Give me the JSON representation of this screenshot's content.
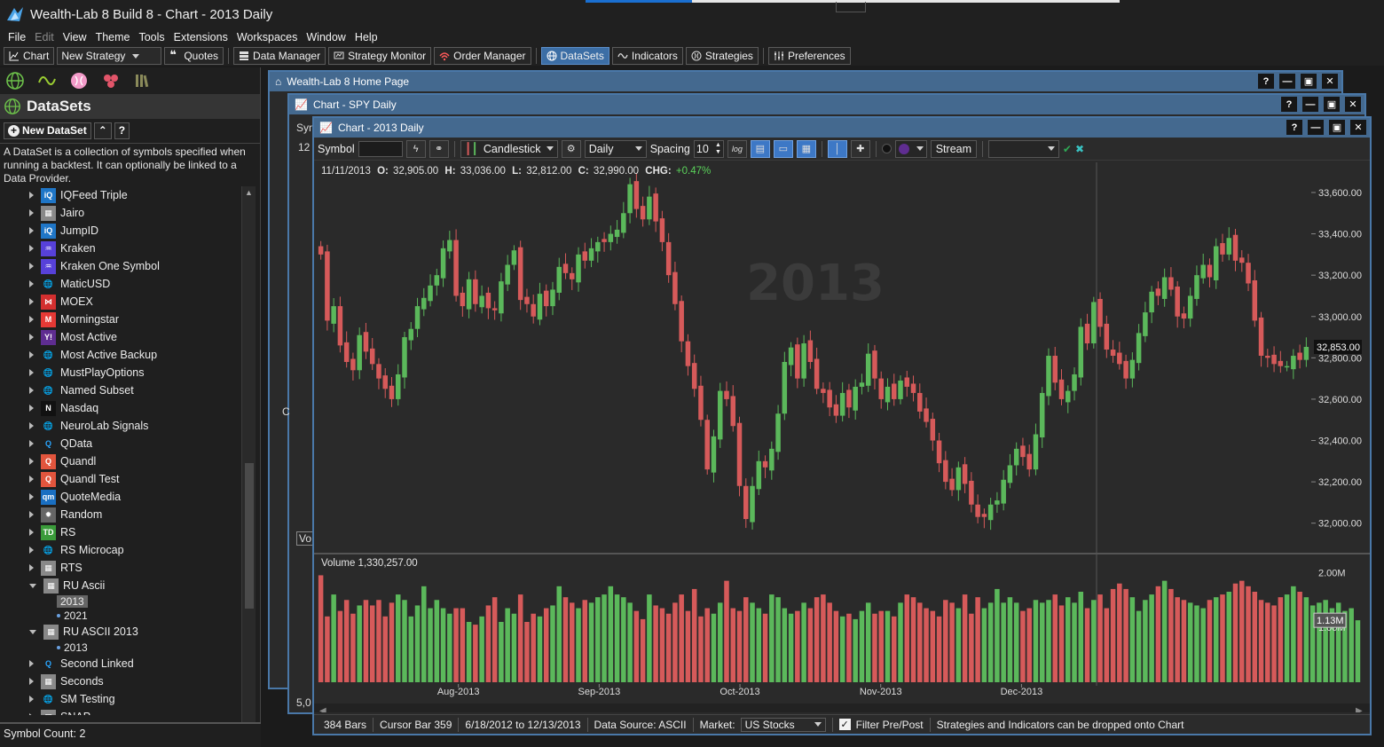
{
  "app": {
    "title": "Wealth-Lab 8 Build 8 - Chart - 2013 Daily"
  },
  "menu": [
    "File",
    "Edit",
    "View",
    "Theme",
    "Tools",
    "Extensions",
    "Workspaces",
    "Window",
    "Help"
  ],
  "toolbar": {
    "chart": "Chart",
    "new_strategy": "New Strategy",
    "quotes": "Quotes",
    "data_manager": "Data Manager",
    "strategy_monitor": "Strategy Monitor",
    "order_manager": "Order Manager",
    "datasets": "DataSets",
    "indicators": "Indicators",
    "strategies": "Strategies",
    "preferences": "Preferences"
  },
  "datasets_panel": {
    "title": "DataSets",
    "new_button": "New DataSet",
    "description": "A DataSet is a collection of symbols specified when running a backtest. It can optionally be linked to a Data Provider.",
    "items": [
      {
        "label": "IQFeed Triple",
        "icon": "iq-icon"
      },
      {
        "label": "Jairo",
        "icon": "checker-icon"
      },
      {
        "label": "JumpID",
        "icon": "iq-icon"
      },
      {
        "label": "Kraken",
        "icon": "kraken-icon"
      },
      {
        "label": "Kraken One Symbol",
        "icon": "kraken-icon"
      },
      {
        "label": "MaticUSD",
        "icon": "globe-icon"
      },
      {
        "label": "MOEX",
        "icon": "moex-icon"
      },
      {
        "label": "Morningstar",
        "icon": "morningstar-icon"
      },
      {
        "label": "Most Active",
        "icon": "yahoo-icon"
      },
      {
        "label": "Most Active Backup",
        "icon": "globe-icon"
      },
      {
        "label": "MustPlayOptions",
        "icon": "globe-icon"
      },
      {
        "label": "Named Subset",
        "icon": "globe-icon"
      },
      {
        "label": "Nasdaq",
        "icon": "nasdaq-icon"
      },
      {
        "label": "NeuroLab Signals",
        "icon": "globe-icon"
      },
      {
        "label": "QData",
        "icon": "qdata-icon"
      },
      {
        "label": "Quandl",
        "icon": "quandl-icon"
      },
      {
        "label": "Quandl Test",
        "icon": "quandl-icon"
      },
      {
        "label": "QuoteMedia",
        "icon": "quotemedia-icon"
      },
      {
        "label": "Random",
        "icon": "random-icon"
      },
      {
        "label": "RS",
        "icon": "td-icon"
      },
      {
        "label": "RS Microcap",
        "icon": "globe-icon"
      },
      {
        "label": "RTS",
        "icon": "checker-icon"
      }
    ],
    "ru_ascii": {
      "label": "RU Ascii",
      "children": [
        "2013",
        "2021"
      ]
    },
    "ru_ascii_2013": {
      "label": "RU ASCII 2013",
      "children": [
        "2013"
      ]
    },
    "items_after": [
      {
        "label": "Second Linked",
        "icon": "qdata-icon"
      },
      {
        "label": "Seconds",
        "icon": "checker-icon"
      },
      {
        "label": "SM Testing",
        "icon": "globe-icon"
      },
      {
        "label": "SNAP",
        "icon": "checker-icon"
      }
    ],
    "symbol_count": "Symbol Count: 2"
  },
  "windows": {
    "home": "Wealth-Lab 8 Home Page",
    "spy": "Chart - SPY Daily",
    "spy_left_labels": [
      "Sym",
      "12",
      "C",
      "Vo",
      "5,0"
    ],
    "main": "Chart - 2013 Daily"
  },
  "chart_toolbar": {
    "symbol_label": "Symbol",
    "chart_style": "Candlestick",
    "scale": "Daily",
    "spacing_label": "Spacing",
    "spacing_value": "10",
    "log_label": "log",
    "stream": "Stream"
  },
  "chart_data": {
    "type": "candlestick",
    "watermark": "2013",
    "header": {
      "date": "11/11/2013",
      "o_label": "O:",
      "o": "32,905.00",
      "h_label": "H:",
      "h": "33,036.00",
      "l_label": "L:",
      "l": "32,812.00",
      "c_label": "C:",
      "c": "32,990.00",
      "chg_label": "CHG:",
      "chg": "+0.47%"
    },
    "ylim": [
      31900,
      33660
    ],
    "y_ticks": [
      "33,600.00",
      "33,400.00",
      "33,200.00",
      "33,000.00",
      "32,800.00",
      "32,600.00",
      "32,400.00",
      "32,200.00",
      "32,000.00"
    ],
    "last_price": "32,853.00",
    "x_ticks": [
      "Aug-2013",
      "Sep-2013",
      "Oct-2013",
      "Nov-2013",
      "Dec-2013"
    ],
    "closes": [
      33300,
      32980,
      33050,
      32860,
      32780,
      32740,
      32910,
      32830,
      32770,
      32700,
      32650,
      32600,
      32720,
      32900,
      32940,
      33050,
      33090,
      33150,
      33200,
      33330,
      33370,
      33100,
      33050,
      33180,
      33060,
      33100,
      33040,
      33030,
      33170,
      33250,
      33320,
      33080,
      33060,
      33000,
      33110,
      33050,
      33130,
      33240,
      33210,
      33180,
      33300,
      33270,
      33330,
      33360,
      33360,
      33400,
      33420,
      33500,
      33640,
      33520,
      33470,
      33580,
      33460,
      33360,
      33200,
      33060,
      32880,
      32760,
      32650,
      32500,
      32260,
      32420,
      32640,
      32600,
      32470,
      32180,
      32020,
      32180,
      32300,
      32270,
      32360,
      32530,
      32780,
      32850,
      32700,
      32870,
      32780,
      32650,
      32630,
      32560,
      32520,
      32630,
      32560,
      32660,
      32680,
      32820,
      32700,
      32600,
      32660,
      32600,
      32690,
      32660,
      32630,
      32540,
      32490,
      32400,
      32290,
      32200,
      32160,
      32270,
      32190,
      32090,
      32030,
      32030,
      32090,
      32110,
      32210,
      32280,
      32360,
      32320,
      32260,
      32430,
      32630,
      32810,
      32680,
      32600,
      32640,
      32720,
      32950,
      32870,
      33070,
      32950,
      32840,
      32810,
      32770,
      32700,
      32790,
      32920,
      33020,
      33120,
      33100,
      33190,
      33130,
      33000,
      32990,
      33100,
      33200,
      33250,
      33190,
      33340,
      33300,
      33380,
      33270,
      33260,
      33160,
      32980,
      32810,
      32800,
      32770,
      32760,
      32760,
      32810,
      32790,
      32853
    ],
    "volume": {
      "label": "Volume 1,330,257.00",
      "ylim": [
        0,
        2.2
      ],
      "y_ticks": [
        "2.00M",
        "1.00M"
      ],
      "last_label": "1.13M",
      "values": [
        1.95,
        1.2,
        1.6,
        1.3,
        1.5,
        1.25,
        1.4,
        1.5,
        1.4,
        1.5,
        1.2,
        1.45,
        1.6,
        1.5,
        1.2,
        1.4,
        1.75,
        1.35,
        1.5,
        1.35,
        1.25,
        1.35,
        1.35,
        1.1,
        1.05,
        1.2,
        1.4,
        1.55,
        1.1,
        1.35,
        1.25,
        1.6,
        1.1,
        1.25,
        1.2,
        1.35,
        1.4,
        1.75,
        1.55,
        1.45,
        1.35,
        1.5,
        1.45,
        1.55,
        1.6,
        1.75,
        1.6,
        1.55,
        1.45,
        1.3,
        1.15,
        1.6,
        1.4,
        1.35,
        1.25,
        1.45,
        1.6,
        1.3,
        1.7,
        1.2,
        1.35,
        1.25,
        1.45,
        1.85,
        1.35,
        1.3,
        1.55,
        1.45,
        1.35,
        1.25,
        1.6,
        1.55,
        1.35,
        1.25,
        1.3,
        1.45,
        1.35,
        1.55,
        1.6,
        1.45,
        1.3,
        1.2,
        1.25,
        1.15,
        1.3,
        1.45,
        1.25,
        1.3,
        1.3,
        1.2,
        1.45,
        1.6,
        1.55,
        1.45,
        1.35,
        1.3,
        1.2,
        1.5,
        1.45,
        1.35,
        1.6,
        1.25,
        1.55,
        1.35,
        1.45,
        1.7,
        1.45,
        1.55,
        1.45,
        1.3,
        1.35,
        1.5,
        1.45,
        1.5,
        1.6,
        1.4,
        1.55,
        1.45,
        1.65,
        1.35,
        1.5,
        1.6,
        1.35,
        1.7,
        1.8,
        1.7,
        1.55,
        1.3,
        1.5,
        1.6,
        1.75,
        1.85,
        1.7,
        1.55,
        1.5,
        1.45,
        1.4,
        1.35,
        1.5,
        1.55,
        1.6,
        1.65,
        1.8,
        1.85,
        1.75,
        1.65,
        1.5,
        1.45,
        1.4,
        1.55,
        1.6,
        1.75,
        1.65,
        1.55,
        1.4,
        1.45,
        1.5,
        1.35,
        1.45,
        1.3,
        1.35,
        1.13
      ]
    }
  },
  "status": {
    "bars": "384 Bars",
    "cursor": "Cursor Bar 359",
    "range": "6/18/2012 to 12/13/2013",
    "source": "Data Source: ASCII",
    "market_label": "Market:",
    "market_value": "US Stocks",
    "filter": "Filter Pre/Post",
    "hint": "Strategies and Indicators can be dropped onto Chart"
  },
  "colors": {
    "up": "#5bb85b",
    "down": "#d65a5a",
    "accent": "#3d78c6",
    "window_title": "#44698f"
  }
}
